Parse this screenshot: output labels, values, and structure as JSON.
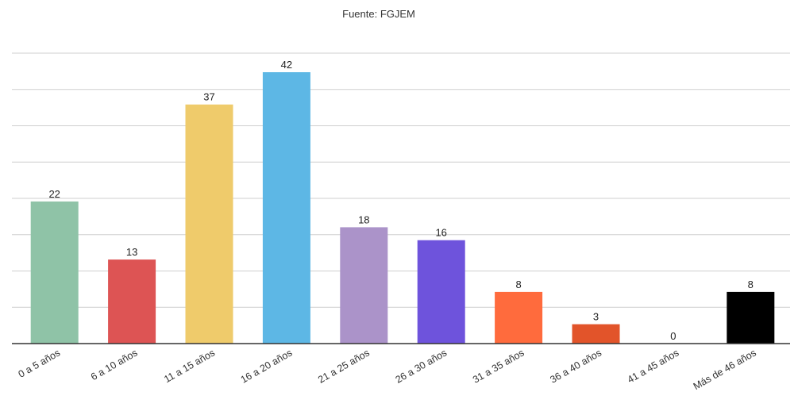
{
  "chart_data": {
    "type": "bar",
    "source": "Fuente: FGJEM",
    "categories": [
      "0 a 5 años",
      "6 a 10 años",
      "11 a 15 años",
      "16 a 20 años",
      "21 a 25 años",
      "26 a 30 años",
      "31 a 35 años",
      "36 a 40 años",
      "41 a 45 años",
      "Más de 46 años"
    ],
    "values": [
      22,
      13,
      37,
      42,
      18,
      16,
      8,
      3,
      0,
      8
    ],
    "colors": [
      "#8fc3a7",
      "#dd5454",
      "#efcb6b",
      "#5db7e5",
      "#ab93c9",
      "#6e53dc",
      "#ff6b3d",
      "#e2542a",
      "#444444",
      "#000000"
    ],
    "ylim": [
      0,
      42
    ],
    "gridlines": 8,
    "grid": true,
    "legend": "none",
    "xlabel": "",
    "ylabel": ""
  }
}
